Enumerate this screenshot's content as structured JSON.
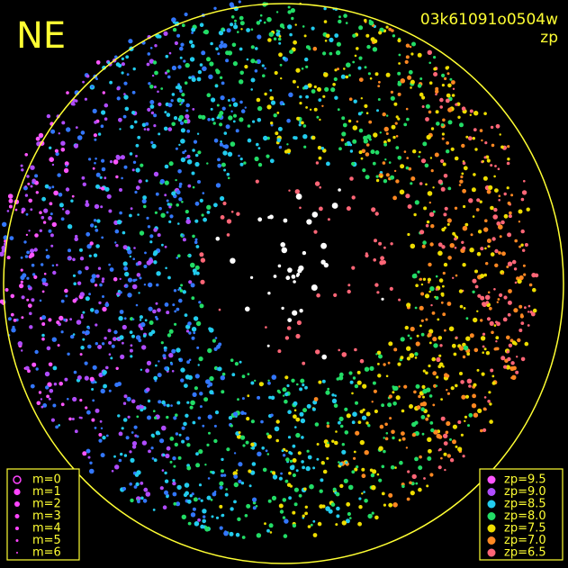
{
  "header": {
    "corner_label": "NE",
    "title": "03k61091o0504w",
    "subtitle": "zp"
  },
  "magnitude_legend": {
    "entries": [
      "m=0",
      "m=1",
      "m=2",
      "m=3",
      "m=4",
      "m=5",
      "m=6"
    ]
  },
  "zp_legend": {
    "entries": [
      {
        "label": "zp=9.5",
        "color": "#ff55ff"
      },
      {
        "label": "zp=9.0",
        "color": "#b04cff"
      },
      {
        "label": "zp=8.5",
        "color": "#22ccee"
      },
      {
        "label": "zp=8.0",
        "color": "#22dd66"
      },
      {
        "label": "zp=7.5",
        "color": "#eedd00"
      },
      {
        "label": "zp=7.0",
        "color": "#ff8822"
      },
      {
        "label": "zp=6.5",
        "color": "#ff6677"
      }
    ]
  }
}
